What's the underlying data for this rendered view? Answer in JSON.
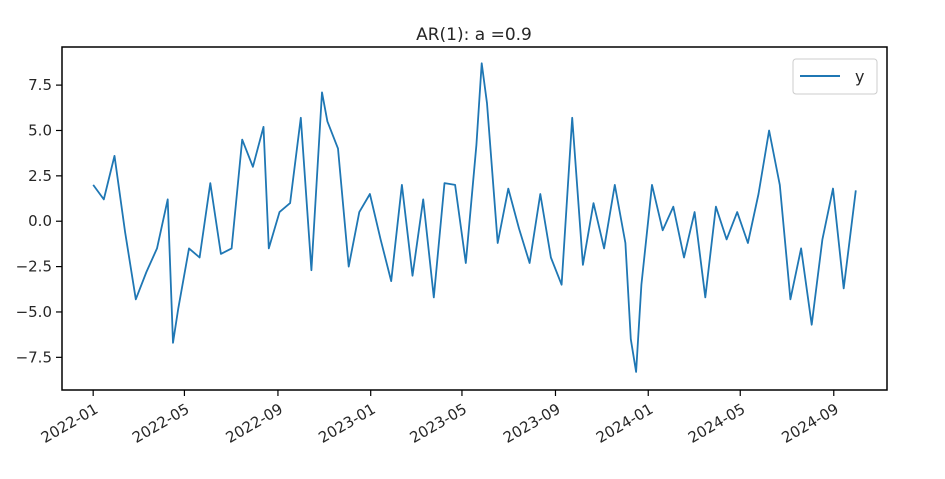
{
  "chart_data": {
    "type": "line",
    "title": "AR(1): a =0.9",
    "xlabel": "",
    "ylabel": "",
    "x_start": "2022-01-01",
    "x_end": "2024-09-30",
    "xlim": [
      "2021-11-21",
      "2024-11-10"
    ],
    "ylim": [
      -9.3,
      9.6
    ],
    "x_ticks": [
      "2022-01",
      "2022-05",
      "2022-09",
      "2023-01",
      "2023-05",
      "2023-09",
      "2024-01",
      "2024-05",
      "2024-09"
    ],
    "y_ticks": [
      7.5,
      5.0,
      2.5,
      0.0,
      -2.5,
      -5.0,
      -7.5
    ],
    "y_tick_labels": [
      "7.5",
      "5.0",
      "2.5",
      "0.0",
      "−2.5",
      "−5.0",
      "−7.5"
    ],
    "grid": false,
    "legend": {
      "position": "top-right",
      "entries": [
        "y"
      ]
    },
    "series": [
      {
        "name": "y",
        "color": "#1f77b4",
        "x": [
          "2022-01-01",
          "2022-01-15",
          "2022-01-29",
          "2022-02-12",
          "2022-02-26",
          "2022-03-12",
          "2022-03-26",
          "2022-04-09",
          "2022-04-16",
          "2022-04-23",
          "2022-05-07",
          "2022-05-21",
          "2022-06-04",
          "2022-06-18",
          "2022-07-02",
          "2022-07-16",
          "2022-07-30",
          "2022-08-13",
          "2022-08-20",
          "2022-09-03",
          "2022-09-17",
          "2022-10-01",
          "2022-10-15",
          "2022-10-29",
          "2022-11-05",
          "2022-11-19",
          "2022-12-03",
          "2022-12-17",
          "2022-12-31",
          "2023-01-14",
          "2023-01-28",
          "2023-02-11",
          "2023-02-25",
          "2023-03-11",
          "2023-03-25",
          "2023-04-08",
          "2023-04-22",
          "2023-05-06",
          "2023-05-20",
          "2023-05-27",
          "2023-06-03",
          "2023-06-17",
          "2023-07-01",
          "2023-07-15",
          "2023-07-29",
          "2023-08-12",
          "2023-08-26",
          "2023-09-09",
          "2023-09-23",
          "2023-10-07",
          "2023-10-21",
          "2023-11-04",
          "2023-11-18",
          "2023-12-02",
          "2023-12-09",
          "2023-12-16",
          "2023-12-23",
          "2024-01-06",
          "2024-01-20",
          "2024-02-03",
          "2024-02-17",
          "2024-03-02",
          "2024-03-16",
          "2024-03-30",
          "2024-04-13",
          "2024-04-27",
          "2024-05-11",
          "2024-05-25",
          "2024-06-08",
          "2024-06-22",
          "2024-07-06",
          "2024-07-20",
          "2024-08-03",
          "2024-08-17",
          "2024-08-31",
          "2024-09-14",
          "2024-09-30"
        ],
        "y": [
          2.0,
          1.2,
          3.6,
          -0.6,
          -4.3,
          -2.8,
          -1.5,
          1.2,
          -6.7,
          -4.8,
          -1.5,
          -2.0,
          2.1,
          -1.8,
          -1.5,
          4.5,
          3.0,
          5.2,
          -1.5,
          0.5,
          1.0,
          5.7,
          -2.7,
          7.1,
          5.5,
          4.0,
          -2.5,
          0.5,
          1.5,
          -1.0,
          -3.3,
          2.0,
          -3.0,
          1.2,
          -4.2,
          2.1,
          2.0,
          -2.3,
          4.2,
          8.7,
          6.5,
          -1.2,
          1.8,
          -0.4,
          -2.3,
          1.5,
          -2.0,
          -3.5,
          5.7,
          -2.4,
          1.0,
          -1.5,
          2.0,
          -1.2,
          -6.5,
          -8.3,
          -3.5,
          2.0,
          -0.5,
          0.8,
          -2.0,
          0.5,
          -4.2,
          0.8,
          -1.0,
          0.5,
          -1.2,
          1.5,
          5.0,
          2.0,
          -4.3,
          -1.5,
          -5.7,
          -1.0,
          1.8,
          -3.7,
          1.7
        ]
      }
    ]
  }
}
